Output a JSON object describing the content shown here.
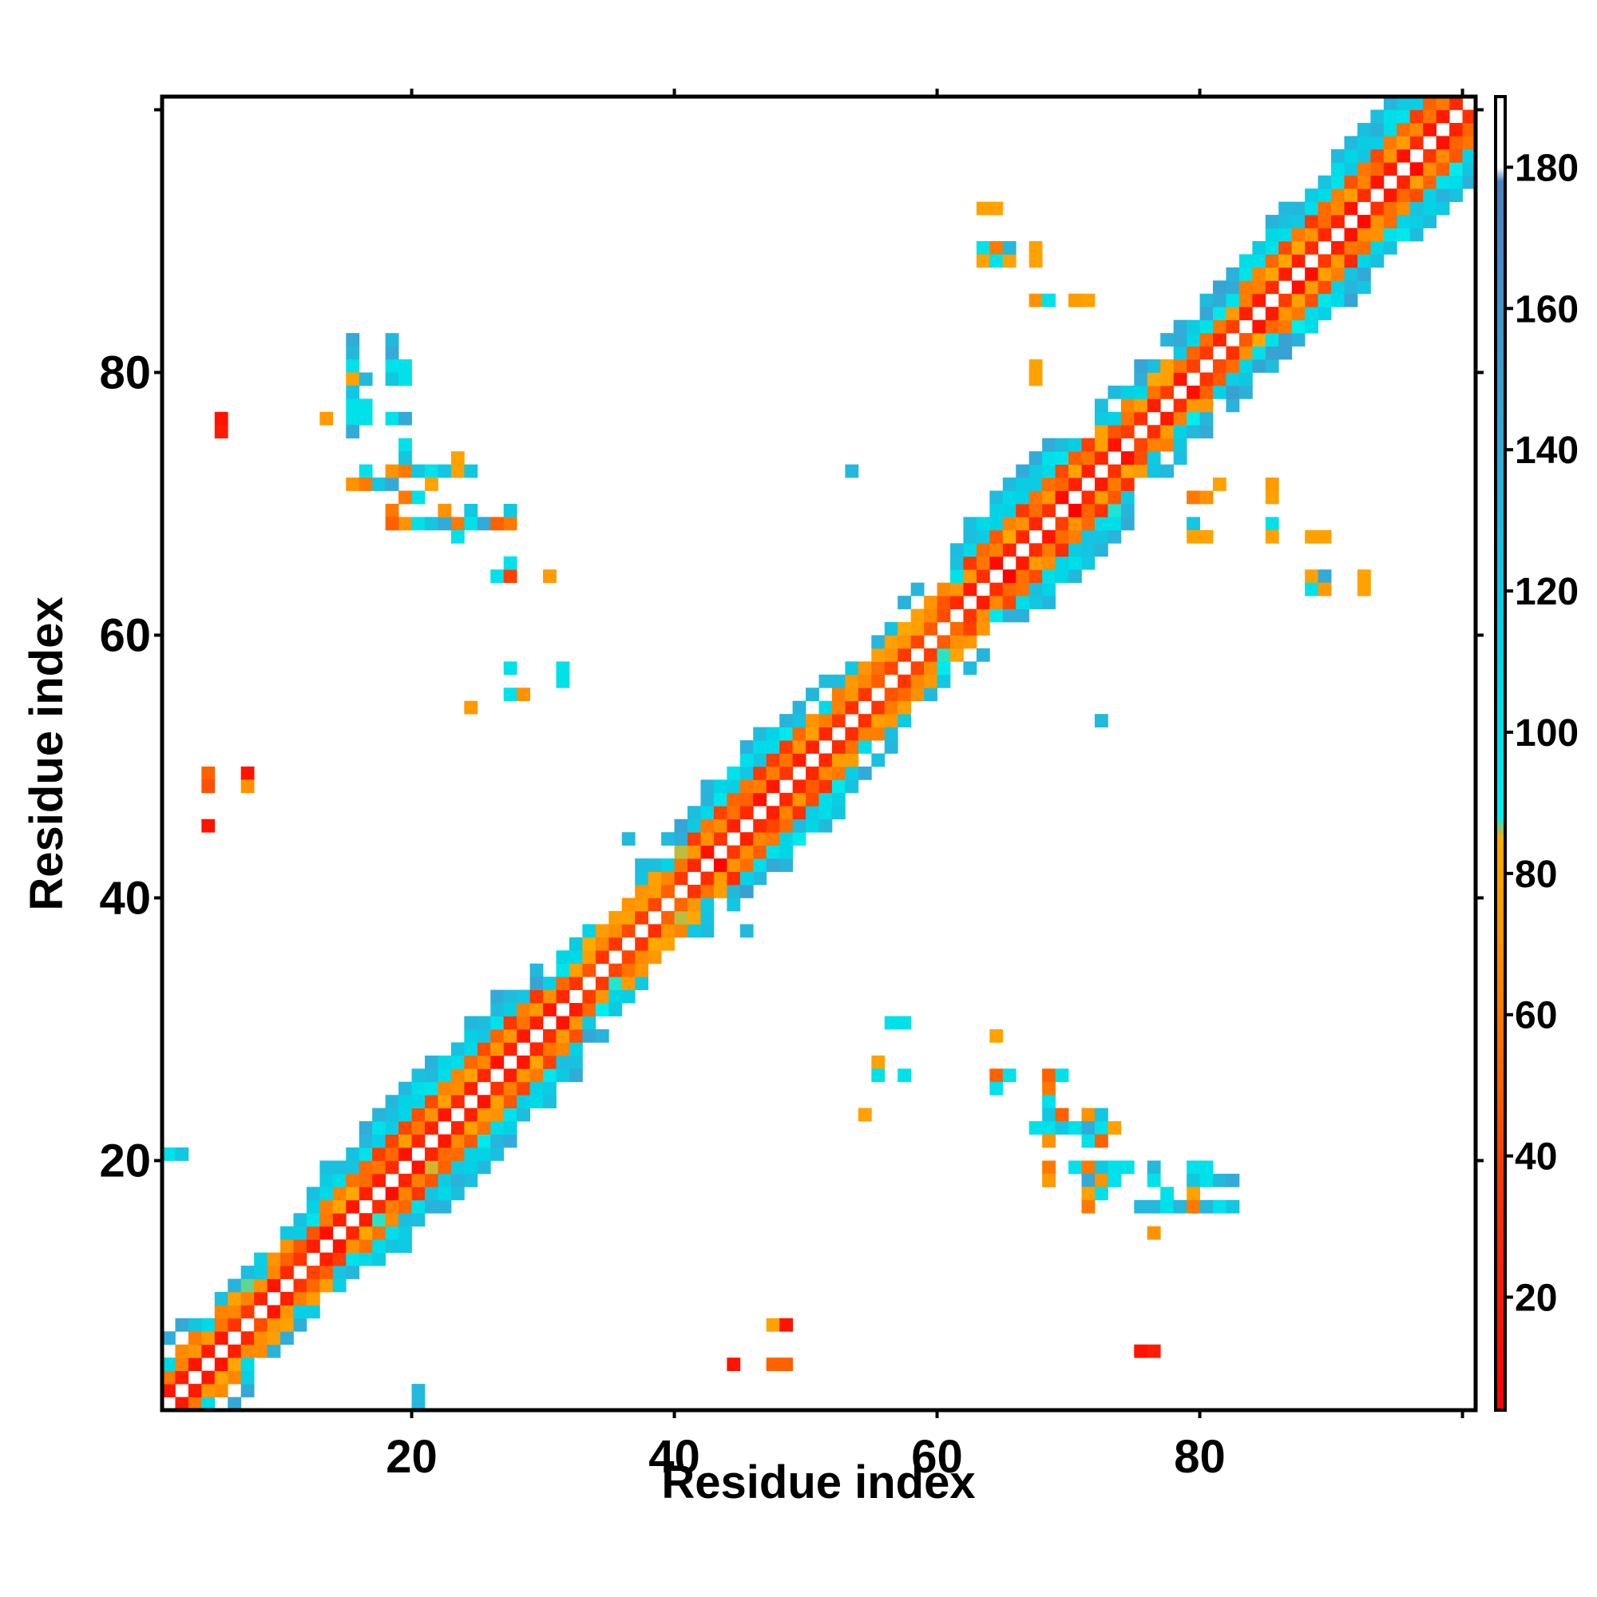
{
  "chart_data": {
    "type": "heatmap",
    "title": "",
    "xlabel": "Residue index",
    "ylabel": "Residue index",
    "xlim": [
      1,
      101
    ],
    "ylim": [
      1,
      101
    ],
    "x_ticks": [
      20,
      40,
      60,
      80
    ],
    "y_ticks": [
      20,
      40,
      60,
      80
    ],
    "grid": false,
    "colorbar": {
      "ticks": [
        20,
        40,
        60,
        80,
        100,
        120,
        140,
        160,
        180
      ],
      "range": [
        4,
        190
      ],
      "stops": [
        {
          "value": 4,
          "color": "#ff0000"
        },
        {
          "value": 38,
          "color": "#ff3a00"
        },
        {
          "value": 50,
          "color": "#ff6000"
        },
        {
          "value": 70,
          "color": "#ff9200"
        },
        {
          "value": 85,
          "color": "#ffaa00"
        },
        {
          "value": 88,
          "color": "#00eeee"
        },
        {
          "value": 110,
          "color": "#00d6e6"
        },
        {
          "value": 140,
          "color": "#33aad8"
        },
        {
          "value": 178,
          "color": "#4f7fbf"
        },
        {
          "value": 180,
          "color": "#ffffff"
        },
        {
          "value": 190,
          "color": "#ffffff"
        }
      ]
    },
    "diagonal_segments": [
      {
        "range": [
          1,
          13
        ],
        "pattern": "mixed"
      },
      {
        "range": [
          13,
          33
        ],
        "pattern": "beta"
      },
      {
        "range": [
          33,
          41
        ],
        "pattern": "helix"
      },
      {
        "range": [
          41,
          53
        ],
        "pattern": "beta"
      },
      {
        "range": [
          53,
          62
        ],
        "pattern": "helix"
      },
      {
        "range": [
          62,
          75
        ],
        "pattern": "beta"
      },
      {
        "range": [
          75,
          83
        ],
        "pattern": "mixed"
      },
      {
        "range": [
          83,
          101
        ],
        "pattern": "beta"
      }
    ],
    "off_diagonal_cells": [
      {
        "x": 5,
        "y": 76,
        "v": 15
      },
      {
        "x": 5,
        "y": 75,
        "v": 20
      },
      {
        "x": 15,
        "y": 82,
        "v": 140
      },
      {
        "x": 15,
        "y": 81,
        "v": 130
      },
      {
        "x": 15,
        "y": 80,
        "v": 100
      },
      {
        "x": 15,
        "y": 79,
        "v": 80
      },
      {
        "x": 15,
        "y": 78,
        "v": 120
      },
      {
        "x": 15,
        "y": 77,
        "v": 100
      },
      {
        "x": 15,
        "y": 76,
        "v": 100
      },
      {
        "x": 15,
        "y": 75,
        "v": 140
      },
      {
        "x": 13,
        "y": 76,
        "v": 75
      },
      {
        "x": 16,
        "y": 79,
        "v": 130
      },
      {
        "x": 16,
        "y": 77,
        "v": 100
      },
      {
        "x": 16,
        "y": 76,
        "v": 100
      },
      {
        "x": 18,
        "y": 82,
        "v": 130
      },
      {
        "x": 18,
        "y": 81,
        "v": 140
      },
      {
        "x": 18,
        "y": 80,
        "v": 100
      },
      {
        "x": 18,
        "y": 79,
        "v": 120
      },
      {
        "x": 19,
        "y": 80,
        "v": 100
      },
      {
        "x": 19,
        "y": 79,
        "v": 100
      },
      {
        "x": 18,
        "y": 76,
        "v": 100
      },
      {
        "x": 19,
        "y": 76,
        "v": 140
      },
      {
        "x": 16,
        "y": 72,
        "v": 100
      },
      {
        "x": 15,
        "y": 71,
        "v": 70
      },
      {
        "x": 16,
        "y": 71,
        "v": 60
      },
      {
        "x": 17,
        "y": 71,
        "v": 120
      },
      {
        "x": 18,
        "y": 71,
        "v": 140
      },
      {
        "x": 18,
        "y": 72,
        "v": 70
      },
      {
        "x": 19,
        "y": 72,
        "v": 60
      },
      {
        "x": 19,
        "y": 74,
        "v": 100
      },
      {
        "x": 19,
        "y": 73,
        "v": 120
      },
      {
        "x": 20,
        "y": 72,
        "v": 120
      },
      {
        "x": 21,
        "y": 72,
        "v": 100
      },
      {
        "x": 22,
        "y": 72,
        "v": 120
      },
      {
        "x": 23,
        "y": 72,
        "v": 80
      },
      {
        "x": 23,
        "y": 73,
        "v": 80
      },
      {
        "x": 24,
        "y": 72,
        "v": 120
      },
      {
        "x": 21,
        "y": 71,
        "v": 80
      },
      {
        "x": 20,
        "y": 70,
        "v": 100
      },
      {
        "x": 19,
        "y": 70,
        "v": 60
      },
      {
        "x": 18,
        "y": 69,
        "v": 60
      },
      {
        "x": 19,
        "y": 68,
        "v": 70
      },
      {
        "x": 18,
        "y": 68,
        "v": 50
      },
      {
        "x": 20,
        "y": 68,
        "v": 100
      },
      {
        "x": 21,
        "y": 68,
        "v": 120
      },
      {
        "x": 23,
        "y": 68,
        "v": 60
      },
      {
        "x": 22,
        "y": 68,
        "v": 140
      },
      {
        "x": 22,
        "y": 69,
        "v": 70
      },
      {
        "x": 23,
        "y": 67,
        "v": 100
      },
      {
        "x": 24,
        "y": 69,
        "v": 120
      },
      {
        "x": 24,
        "y": 68,
        "v": 100
      },
      {
        "x": 25,
        "y": 68,
        "v": 140
      },
      {
        "x": 26,
        "y": 68,
        "v": 50
      },
      {
        "x": 27,
        "y": 68,
        "v": 60
      },
      {
        "x": 27,
        "y": 69,
        "v": 120
      },
      {
        "x": 26,
        "y": 64,
        "v": 100
      },
      {
        "x": 27,
        "y": 64,
        "v": 40
      },
      {
        "x": 27,
        "y": 65,
        "v": 100
      },
      {
        "x": 30,
        "y": 64,
        "v": 75
      },
      {
        "x": 27,
        "y": 57,
        "v": 100
      },
      {
        "x": 27,
        "y": 55,
        "v": 100
      },
      {
        "x": 28,
        "y": 55,
        "v": 70
      },
      {
        "x": 31,
        "y": 57,
        "v": 100
      },
      {
        "x": 31,
        "y": 56,
        "v": 100
      },
      {
        "x": 24,
        "y": 54,
        "v": 75
      },
      {
        "x": 4,
        "y": 49,
        "v": 50
      },
      {
        "x": 4,
        "y": 48,
        "v": 45
      },
      {
        "x": 7,
        "y": 49,
        "v": 15
      },
      {
        "x": 7,
        "y": 48,
        "v": 70
      },
      {
        "x": 4,
        "y": 45,
        "v": 15
      },
      {
        "x": 1,
        "y": 20,
        "v": 100
      },
      {
        "x": 2,
        "y": 20,
        "v": 120
      },
      {
        "x": 20,
        "y": 2,
        "v": 130
      },
      {
        "x": 20,
        "y": 1,
        "v": 130
      },
      {
        "x": 44,
        "y": 4,
        "v": 15
      },
      {
        "x": 47,
        "y": 4,
        "v": 50
      },
      {
        "x": 48,
        "y": 4,
        "v": 50
      },
      {
        "x": 47,
        "y": 7,
        "v": 80
      },
      {
        "x": 48,
        "y": 7,
        "v": 15
      },
      {
        "x": 75,
        "y": 5,
        "v": 15
      },
      {
        "x": 76,
        "y": 5,
        "v": 20
      },
      {
        "x": 36,
        "y": 44,
        "v": 130
      },
      {
        "x": 45,
        "y": 37,
        "v": 130
      },
      {
        "x": 53,
        "y": 72,
        "v": 130
      },
      {
        "x": 72,
        "y": 53,
        "v": 130
      },
      {
        "x": 54,
        "y": 23,
        "v": 80
      },
      {
        "x": 55,
        "y": 27,
        "v": 80
      },
      {
        "x": 55,
        "y": 26,
        "v": 100
      },
      {
        "x": 56,
        "y": 30,
        "v": 100
      },
      {
        "x": 57,
        "y": 30,
        "v": 100
      },
      {
        "x": 57,
        "y": 26,
        "v": 100
      },
      {
        "x": 64,
        "y": 29,
        "v": 80
      },
      {
        "x": 64,
        "y": 26,
        "v": 50
      },
      {
        "x": 65,
        "y": 26,
        "v": 100
      },
      {
        "x": 64,
        "y": 25,
        "v": 100
      },
      {
        "x": 68,
        "y": 26,
        "v": 50
      },
      {
        "x": 69,
        "y": 26,
        "v": 100
      },
      {
        "x": 68,
        "y": 25,
        "v": 60
      },
      {
        "x": 68,
        "y": 24,
        "v": 100
      },
      {
        "x": 68,
        "y": 23,
        "v": 120
      },
      {
        "x": 69,
        "y": 23,
        "v": 50
      },
      {
        "x": 67,
        "y": 22,
        "v": 100
      },
      {
        "x": 68,
        "y": 22,
        "v": 100
      },
      {
        "x": 68,
        "y": 21,
        "v": 70
      },
      {
        "x": 69,
        "y": 22,
        "v": 120
      },
      {
        "x": 70,
        "y": 22,
        "v": 100
      },
      {
        "x": 71,
        "y": 23,
        "v": 70
      },
      {
        "x": 72,
        "y": 23,
        "v": 120
      },
      {
        "x": 71,
        "y": 22,
        "v": 140
      },
      {
        "x": 72,
        "y": 22,
        "v": 100
      },
      {
        "x": 73,
        "y": 22,
        "v": 80
      },
      {
        "x": 71,
        "y": 21,
        "v": 100
      },
      {
        "x": 72,
        "y": 21,
        "v": 50
      },
      {
        "x": 68,
        "y": 19,
        "v": 60
      },
      {
        "x": 68,
        "y": 18,
        "v": 75
      },
      {
        "x": 70,
        "y": 19,
        "v": 100
      },
      {
        "x": 71,
        "y": 19,
        "v": 60
      },
      {
        "x": 72,
        "y": 19,
        "v": 120
      },
      {
        "x": 73,
        "y": 19,
        "v": 100
      },
      {
        "x": 74,
        "y": 19,
        "v": 100
      },
      {
        "x": 71,
        "y": 18,
        "v": 140
      },
      {
        "x": 72,
        "y": 18,
        "v": 70
      },
      {
        "x": 73,
        "y": 18,
        "v": 100
      },
      {
        "x": 71,
        "y": 17,
        "v": 80
      },
      {
        "x": 72,
        "y": 17,
        "v": 100
      },
      {
        "x": 71,
        "y": 16,
        "v": 60
      },
      {
        "x": 76,
        "y": 19,
        "v": 130
      },
      {
        "x": 76,
        "y": 18,
        "v": 100
      },
      {
        "x": 79,
        "y": 19,
        "v": 100
      },
      {
        "x": 80,
        "y": 19,
        "v": 100
      },
      {
        "x": 79,
        "y": 18,
        "v": 120
      },
      {
        "x": 80,
        "y": 18,
        "v": 100
      },
      {
        "x": 81,
        "y": 18,
        "v": 130
      },
      {
        "x": 82,
        "y": 18,
        "v": 140
      },
      {
        "x": 75,
        "y": 16,
        "v": 130
      },
      {
        "x": 76,
        "y": 16,
        "v": 130
      },
      {
        "x": 77,
        "y": 16,
        "v": 100
      },
      {
        "x": 77,
        "y": 17,
        "v": 100
      },
      {
        "x": 79,
        "y": 17,
        "v": 80
      },
      {
        "x": 78,
        "y": 16,
        "v": 130
      },
      {
        "x": 79,
        "y": 16,
        "v": 60
      },
      {
        "x": 80,
        "y": 16,
        "v": 130
      },
      {
        "x": 81,
        "y": 16,
        "v": 100
      },
      {
        "x": 82,
        "y": 16,
        "v": 120
      },
      {
        "x": 76,
        "y": 14,
        "v": 70
      },
      {
        "x": 63,
        "y": 92,
        "v": 80
      },
      {
        "x": 64,
        "y": 92,
        "v": 80
      },
      {
        "x": 63,
        "y": 89,
        "v": 100
      },
      {
        "x": 64,
        "y": 89,
        "v": 60
      },
      {
        "x": 63,
        "y": 88,
        "v": 80
      },
      {
        "x": 64,
        "y": 88,
        "v": 100
      },
      {
        "x": 65,
        "y": 88,
        "v": 80
      },
      {
        "x": 65,
        "y": 89,
        "v": 130
      },
      {
        "x": 67,
        "y": 89,
        "v": 80
      },
      {
        "x": 67,
        "y": 88,
        "v": 80
      },
      {
        "x": 67,
        "y": 85,
        "v": 70
      },
      {
        "x": 68,
        "y": 85,
        "v": 100
      },
      {
        "x": 70,
        "y": 85,
        "v": 75
      },
      {
        "x": 71,
        "y": 85,
        "v": 80
      },
      {
        "x": 67,
        "y": 80,
        "v": 80
      },
      {
        "x": 67,
        "y": 79,
        "v": 80
      },
      {
        "x": 79,
        "y": 70,
        "v": 60
      },
      {
        "x": 80,
        "y": 70,
        "v": 70
      },
      {
        "x": 81,
        "y": 71,
        "v": 80
      },
      {
        "x": 79,
        "y": 68,
        "v": 120
      },
      {
        "x": 79,
        "y": 67,
        "v": 80
      },
      {
        "x": 80,
        "y": 67,
        "v": 80
      },
      {
        "x": 85,
        "y": 71,
        "v": 75
      },
      {
        "x": 85,
        "y": 70,
        "v": 80
      },
      {
        "x": 85,
        "y": 68,
        "v": 100
      },
      {
        "x": 85,
        "y": 67,
        "v": 80
      },
      {
        "x": 88,
        "y": 67,
        "v": 80
      },
      {
        "x": 89,
        "y": 67,
        "v": 80
      },
      {
        "x": 88,
        "y": 64,
        "v": 80
      },
      {
        "x": 89,
        "y": 64,
        "v": 140
      },
      {
        "x": 88,
        "y": 63,
        "v": 100
      },
      {
        "x": 89,
        "y": 63,
        "v": 75
      },
      {
        "x": 92,
        "y": 64,
        "v": 80
      },
      {
        "x": 92,
        "y": 63,
        "v": 80
      }
    ]
  }
}
